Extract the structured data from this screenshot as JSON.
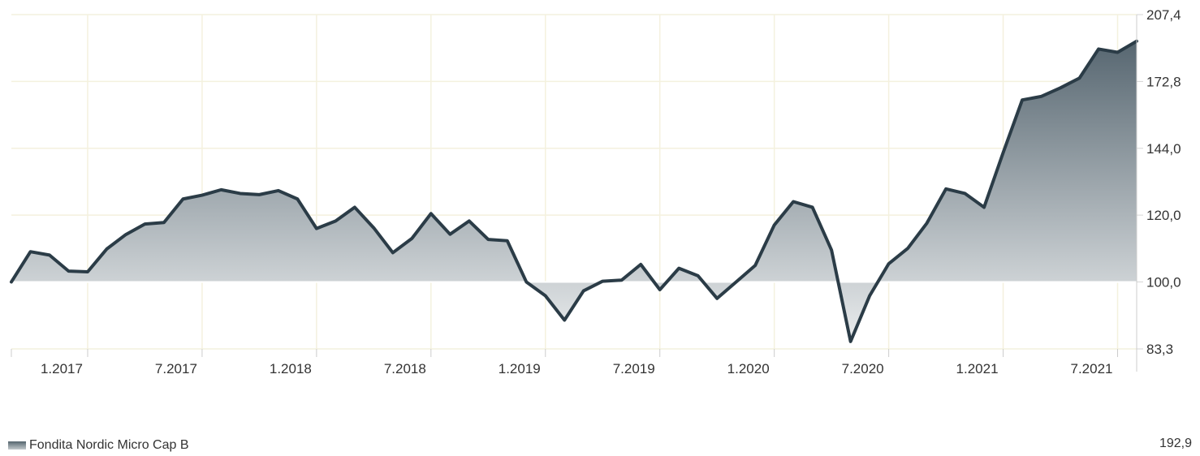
{
  "chart_data": {
    "type": "area",
    "x_labels": [
      "1.2017",
      "7.2017",
      "1.2018",
      "7.2018",
      "1.2019",
      "7.2019",
      "1.2020",
      "7.2020",
      "1.2021",
      "7.2021"
    ],
    "y_ticks": [
      "207,4",
      "172,8",
      "144,0",
      "120,0",
      "100,0",
      "83,3"
    ],
    "y_tick_values": [
      207.4,
      172.8,
      144.0,
      120.0,
      100.0,
      83.3
    ],
    "y_scale": "log",
    "ylim": [
      83.3,
      207.4
    ],
    "baseline": 100.0,
    "x_range": [
      "2016-09",
      "2021-08"
    ],
    "grid": true,
    "legend_position": "bottom-left",
    "series": [
      {
        "name": "Fondita Nordic Micro Cap B",
        "color": "#2b3c47",
        "x": [
          "2016-09",
          "2016-10",
          "2016-11",
          "2016-12",
          "2017-01",
          "2017-02",
          "2017-03",
          "2017-04",
          "2017-05",
          "2017-06",
          "2017-07",
          "2017-08",
          "2017-09",
          "2017-10",
          "2017-11",
          "2017-12",
          "2018-01",
          "2018-02",
          "2018-03",
          "2018-04",
          "2018-05",
          "2018-06",
          "2018-07",
          "2018-08",
          "2018-09",
          "2018-10",
          "2018-11",
          "2018-12",
          "2019-01",
          "2019-02",
          "2019-03",
          "2019-04",
          "2019-05",
          "2019-06",
          "2019-07",
          "2019-08",
          "2019-09",
          "2019-10",
          "2019-11",
          "2019-12",
          "2020-01",
          "2020-02",
          "2020-03",
          "2020-04",
          "2020-05",
          "2020-06",
          "2020-07",
          "2020-08",
          "2020-09",
          "2020-10",
          "2020-11",
          "2020-12",
          "2021-01",
          "2021-02",
          "2021-03",
          "2021-04",
          "2021-05",
          "2021-06",
          "2021-07",
          "2021-08"
        ],
        "values": [
          100.0,
          108.6,
          107.6,
          103.0,
          102.8,
          109.4,
          113.8,
          117.1,
          117.6,
          125.4,
          126.7,
          128.6,
          127.3,
          126.9,
          128.3,
          125.4,
          115.7,
          118.1,
          122.6,
          115.9,
          108.3,
          112.6,
          120.5,
          113.9,
          118.1,
          112.3,
          111.9,
          100.0,
          96.3,
          90.1,
          97.6,
          100.2,
          100.5,
          104.9,
          97.9,
          103.8,
          101.7,
          95.6,
          100.0,
          104.6,
          116.8,
          124.5,
          122.6,
          109.1,
          85.0,
          96.3,
          105.1,
          109.6,
          117.4,
          128.9,
          127.3,
          122.6,
          142.3,
          164.3,
          165.9,
          169.8,
          174.4,
          188.8,
          187.1,
          192.9
        ]
      }
    ],
    "last_value": "192,9"
  }
}
